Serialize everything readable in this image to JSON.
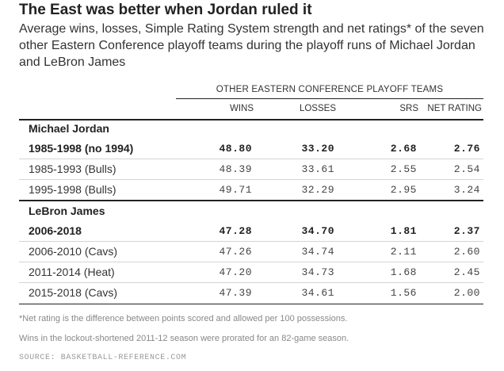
{
  "title": "The East was better when Jordan ruled it",
  "subtitle": "Average wins, losses, Simple Rating System strength and net ratings* of the seven other Eastern Conference playoff teams during the playoff runs of Michael Jordan and LeBron James",
  "table": {
    "group_header": "OTHER EASTERN CONFERENCE PLAYOFF TEAMS",
    "columns": [
      "WINS",
      "LOSSES",
      "SRS",
      "NET RATING"
    ],
    "sections": [
      {
        "label": "Michael Jordan",
        "rows": [
          {
            "name": "1985-1998 (no 1994)",
            "bold": true,
            "values": [
              "48.80",
              "33.20",
              "2.68",
              "2.76"
            ]
          },
          {
            "name": "1985-1993 (Bulls)",
            "bold": false,
            "values": [
              "48.39",
              "33.61",
              "2.55",
              "2.54"
            ]
          },
          {
            "name": "1995-1998 (Bulls)",
            "bold": false,
            "values": [
              "49.71",
              "32.29",
              "2.95",
              "3.24"
            ]
          }
        ]
      },
      {
        "label": "LeBron James",
        "rows": [
          {
            "name": "2006-2018",
            "bold": true,
            "values": [
              "47.28",
              "34.70",
              "1.81",
              "2.37"
            ]
          },
          {
            "name": "2006-2010 (Cavs)",
            "bold": false,
            "values": [
              "47.26",
              "34.74",
              "2.11",
              "2.60"
            ]
          },
          {
            "name": "2011-2014 (Heat)",
            "bold": false,
            "values": [
              "47.20",
              "34.73",
              "1.68",
              "2.45"
            ]
          },
          {
            "name": "2015-2018 (Cavs)",
            "bold": false,
            "values": [
              "47.39",
              "34.61",
              "1.56",
              "2.00"
            ]
          }
        ]
      }
    ]
  },
  "notes": [
    "*Net rating is the difference between points scored and allowed per 100 possessions.",
    "Wins in the lockout-shortened 2011-12 season were prorated for an 82-game season."
  ],
  "source": "SOURCE: BASKETBALL-REFERENCE.COM"
}
